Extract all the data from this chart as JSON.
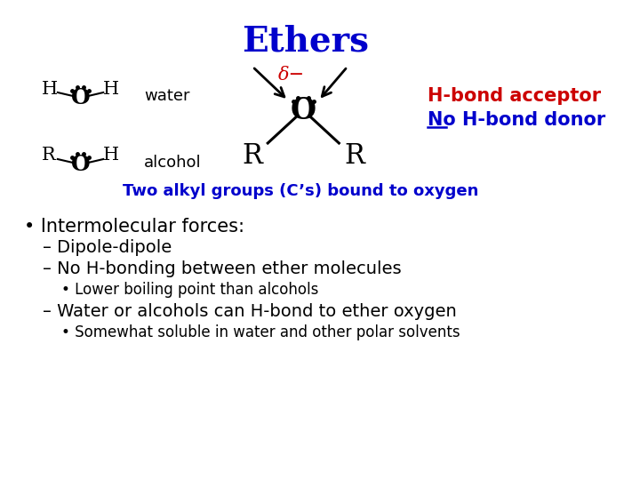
{
  "title": "Ethers",
  "title_color": "#0000CC",
  "title_fontsize": 28,
  "bg_color": "#ffffff",
  "water_label": "water",
  "alcohol_label": "alcohol",
  "hbond_acceptor": "H-bond acceptor",
  "hbond_acceptor_color": "#CC0000",
  "no_hbond_donor": "No H-bond donor",
  "no_hbond_donor_color": "#0000CC",
  "two_alkyl": "Two alkyl groups (C’s) bound to oxygen",
  "two_alkyl_color": "#0000CC",
  "intermolecular": "• Intermolecular forces:",
  "dipole_dipole": "– Dipole-dipole",
  "no_hbonding": "– No H-bonding between ether molecules",
  "lower_bp": "• Lower boiling point than alcohols",
  "water_alcohols": "– Water or alcohols can H-bond to ether oxygen",
  "somewhat": "• Somewhat soluble in water and other polar solvents",
  "text_color_black": "#000000",
  "text_color_blue": "#0000CC"
}
